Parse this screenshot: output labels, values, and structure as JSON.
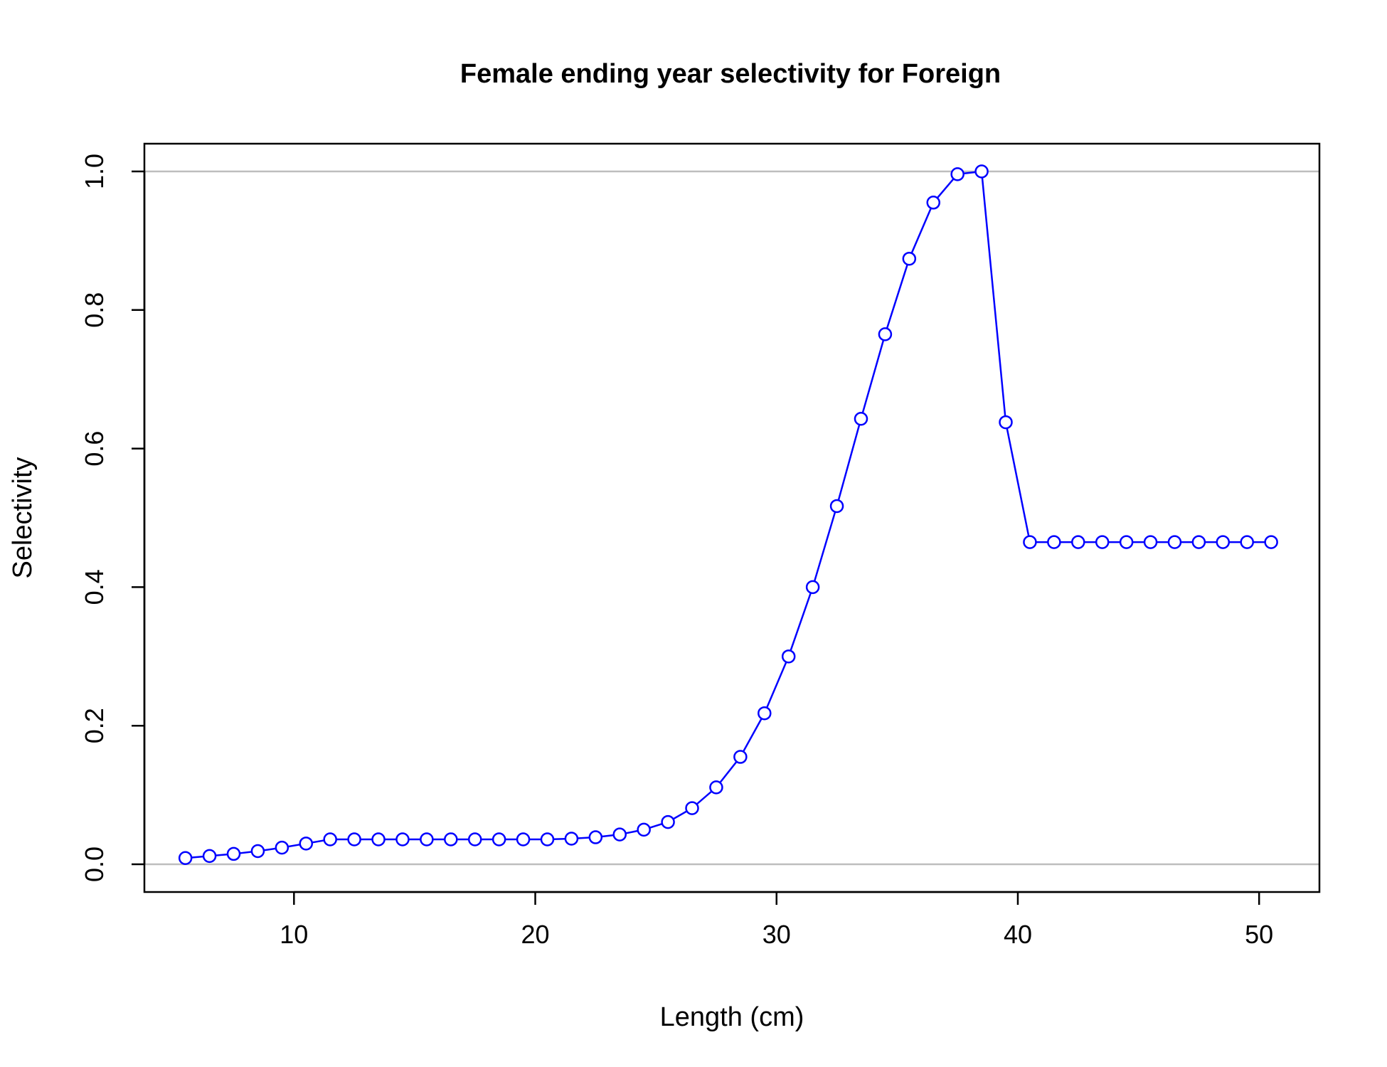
{
  "chart_data": {
    "type": "line",
    "title": "Female ending year selectivity for Foreign",
    "xlabel": "Length (cm)",
    "ylabel": "Selectivity",
    "xlim": [
      3.8,
      52.5
    ],
    "ylim": [
      -0.04,
      1.04
    ],
    "xticks": [
      10,
      20,
      30,
      40,
      50
    ],
    "yticks": [
      0.0,
      0.2,
      0.4,
      0.6,
      0.8,
      1.0
    ],
    "reference_lines_y": [
      0,
      1
    ],
    "colors": {
      "series": "#0000ff",
      "reference": "#bebebe",
      "axis": "#000000"
    },
    "marker": "open-circle",
    "series": [
      {
        "x": [
          5.5,
          6.5,
          7.5,
          8.5,
          9.5,
          10.5,
          11.5,
          12.5,
          13.5,
          14.5,
          15.5,
          16.5,
          17.5,
          18.5,
          19.5,
          20.5,
          21.5,
          22.5,
          23.5,
          24.5,
          25.5,
          26.5,
          27.5,
          28.5,
          29.5,
          30.5,
          31.5,
          32.5,
          33.5,
          34.5,
          35.5,
          36.5,
          37.5,
          38.5,
          39.5,
          40.5,
          41.5,
          42.5,
          43.5,
          44.5,
          45.5,
          46.5,
          47.5,
          48.5,
          49.5,
          50.5
        ],
        "y": [
          0.009,
          0.012,
          0.015,
          0.019,
          0.024,
          0.03,
          0.036,
          0.036,
          0.036,
          0.036,
          0.036,
          0.036,
          0.036,
          0.036,
          0.036,
          0.036,
          0.037,
          0.039,
          0.043,
          0.05,
          0.061,
          0.081,
          0.111,
          0.155,
          0.218,
          0.3,
          0.4,
          0.517,
          0.643,
          0.765,
          0.874,
          0.955,
          0.996,
          1.0,
          0.638,
          0.465,
          0.465,
          0.465,
          0.465,
          0.465,
          0.465,
          0.465,
          0.465,
          0.465,
          0.465,
          0.465
        ]
      }
    ]
  }
}
